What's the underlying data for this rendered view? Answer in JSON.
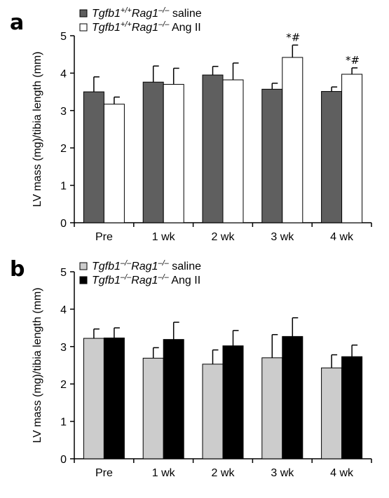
{
  "chart_data": [
    {
      "panel_label": "a",
      "type": "bar",
      "categories": [
        "Pre",
        "1 wk",
        "2 wk",
        "3 wk",
        "4 wk"
      ],
      "ylabel": "LV mass (mg)/tibia length (mm)",
      "ylim": [
        0,
        5
      ],
      "yticks": [
        "0",
        "1",
        "2",
        "3",
        "4",
        "5"
      ],
      "legend": [
        {
          "gene": "Tgfb1",
          "sup1": "+/+",
          "mid": "Rag1",
          "sup2": "–/–",
          "treatment": " saline"
        },
        {
          "gene": "Tgfb1",
          "sup1": "+/+",
          "mid": "Rag1",
          "sup2": "–/–",
          "treatment": " Ang II"
        }
      ],
      "series": [
        {
          "values": [
            3.5,
            3.76,
            3.95,
            3.57,
            3.51
          ],
          "error": [
            0.4,
            0.43,
            0.23,
            0.16,
            0.12
          ],
          "color": "#5f5f5f"
        },
        {
          "values": [
            3.17,
            3.7,
            3.82,
            4.42,
            3.97
          ],
          "error": [
            0.19,
            0.43,
            0.45,
            0.33,
            0.17
          ],
          "color": "#ffffff"
        }
      ],
      "significance": [
        "",
        "",
        "",
        "*#",
        "*#"
      ]
    },
    {
      "panel_label": "b",
      "type": "bar",
      "categories": [
        "Pre",
        "1 wk",
        "2 wk",
        "3 wk",
        "4 wk"
      ],
      "ylabel": "LV mass (mg)/tibia length (mm)",
      "ylim": [
        0,
        5
      ],
      "yticks": [
        "0",
        "1",
        "2",
        "3",
        "4",
        "5"
      ],
      "legend": [
        {
          "gene": "Tgfb1",
          "sup1": "–/–",
          "mid": "Rag1",
          "sup2": "–/–",
          "treatment": " saline"
        },
        {
          "gene": "Tgfb1",
          "sup1": "–/–",
          "mid": "Rag1",
          "sup2": "–/–",
          "treatment": " Ang II"
        }
      ],
      "series": [
        {
          "values": [
            3.22,
            2.69,
            2.53,
            2.7,
            2.43
          ],
          "error": [
            0.25,
            0.28,
            0.38,
            0.62,
            0.35
          ],
          "color": "#cccccc"
        },
        {
          "values": [
            3.23,
            3.19,
            3.02,
            3.27,
            2.73
          ],
          "error": [
            0.27,
            0.46,
            0.41,
            0.5,
            0.31
          ],
          "color": "#000000"
        }
      ],
      "significance": [
        "",
        "",
        "",
        "",
        ""
      ]
    }
  ]
}
